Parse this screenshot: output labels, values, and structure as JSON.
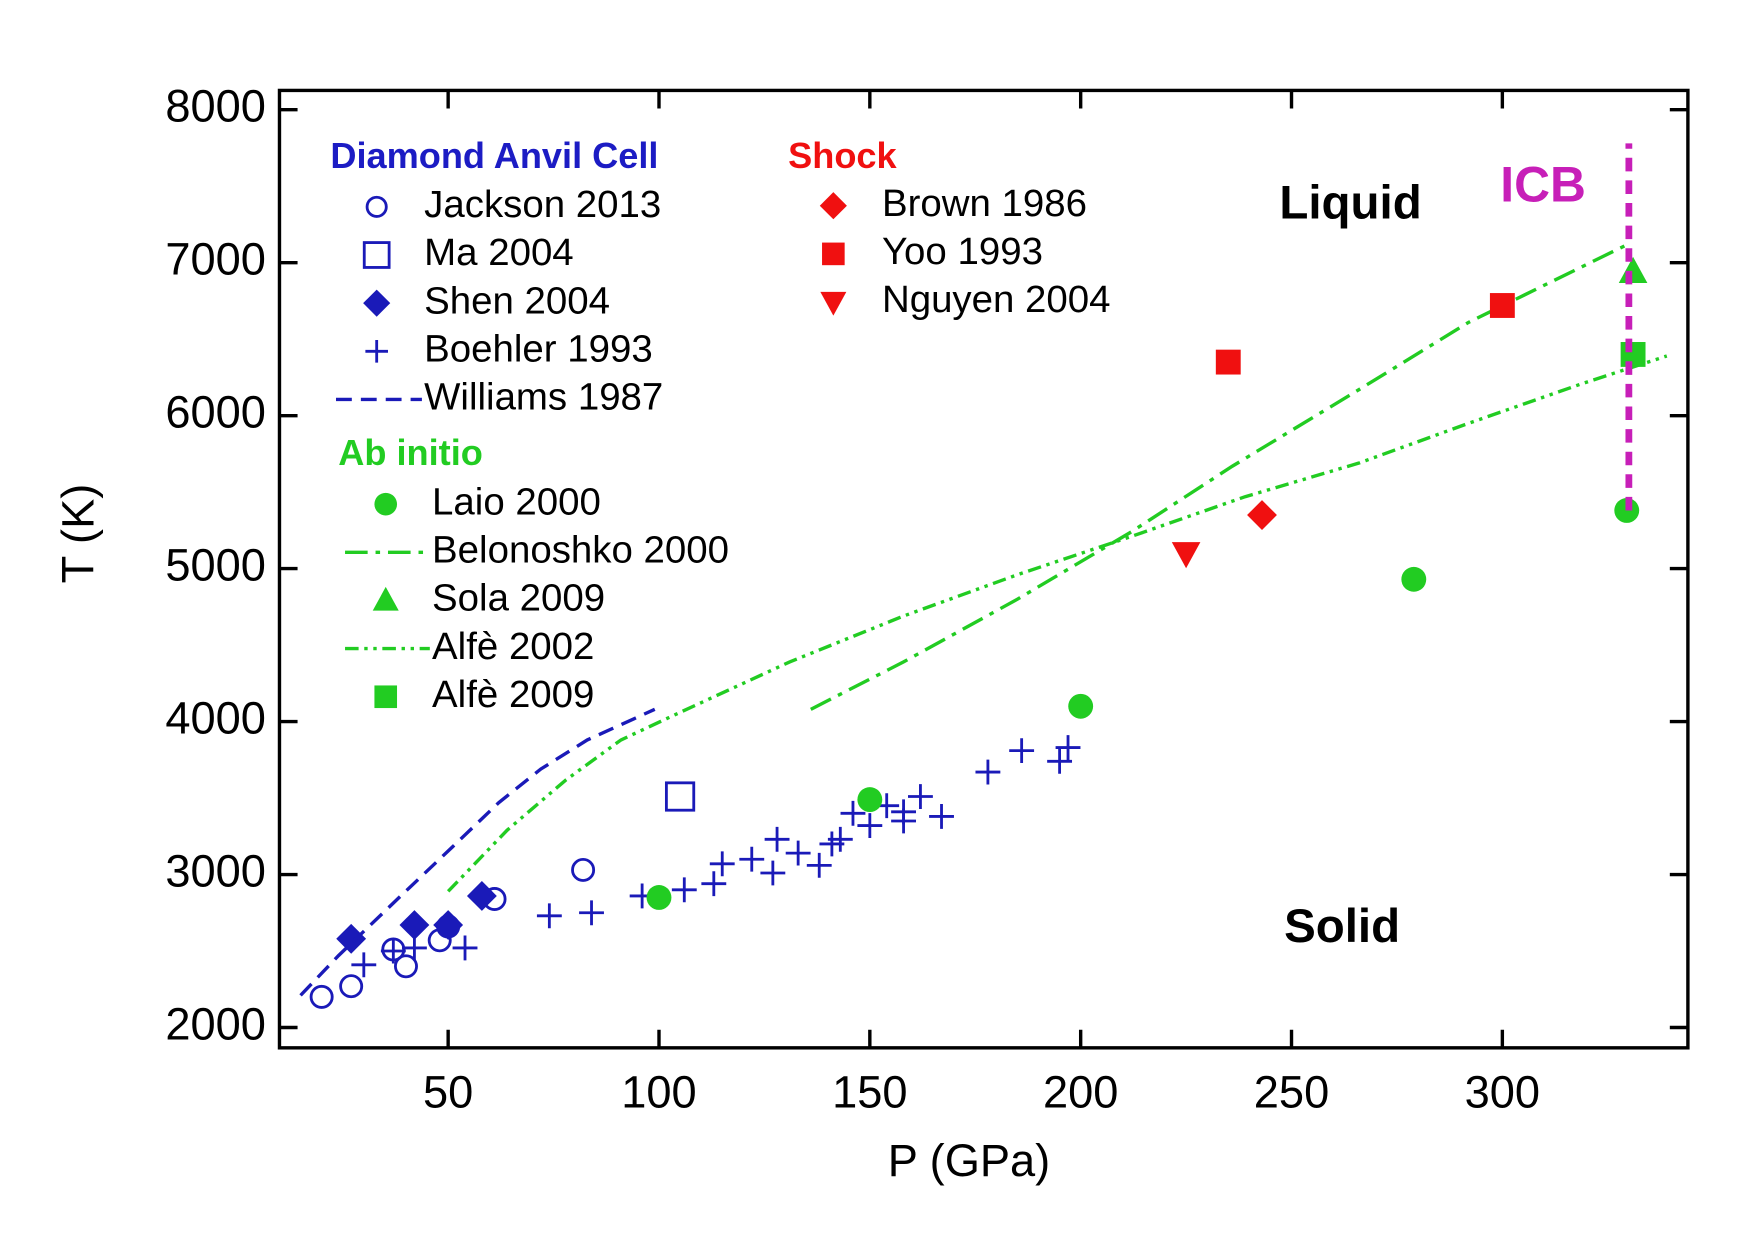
{
  "chart_data": {
    "type": "scatter",
    "x_label": "P (GPa)",
    "y_label": "T (K)",
    "xlim": [
      10,
      344
    ],
    "ylim": [
      1867,
      8126
    ],
    "xticks": [
      50,
      100,
      150,
      200,
      250,
      300
    ],
    "yticks": [
      2000,
      3000,
      4000,
      5000,
      6000,
      7000,
      8000
    ],
    "annotations": [
      {
        "text": "Liquid",
        "x": 264,
        "y": 7370
      },
      {
        "text": "Solid",
        "x": 262,
        "y": 2640
      }
    ],
    "icb": {
      "label": "ICB",
      "color": "#c71fb8",
      "x": 330,
      "y": [
        5380,
        7780
      ]
    },
    "groups": [
      {
        "name": "Diamond Anvil Cell",
        "color": "#1c1cc4",
        "series": [
          {
            "name": "Jackson 2013",
            "color": "#1a1ab8",
            "marker": "circle-open",
            "x": [
              20,
              27,
              37,
              40,
              48,
              50,
              61,
              82
            ],
            "values": [
              2200,
              2270,
              2510,
              2400,
              2570,
              2660,
              2840,
              3030
            ]
          },
          {
            "name": "Ma 2004",
            "color": "#1a1ab8",
            "marker": "square-open",
            "x": [
              105
            ],
            "values": [
              3510
            ]
          },
          {
            "name": "Shen 2004",
            "color": "#1a1ab8",
            "marker": "diamond",
            "x": [
              27,
              42,
              50,
              58
            ],
            "values": [
              2580,
              2670,
              2670,
              2860
            ]
          },
          {
            "name": "Boehler 1993",
            "color": "#1a1ab8",
            "marker": "plus",
            "x": [
              30,
              37,
              42,
              54,
              74,
              84,
              96,
              106,
              113,
              115,
              122,
              127,
              128,
              133,
              138,
              141,
              143,
              146,
              150,
              154,
              158,
              158,
              162,
              167,
              178,
              186,
              195,
              197
            ],
            "values": [
              2410,
              2500,
              2520,
              2520,
              2730,
              2750,
              2860,
              2900,
              2940,
              3070,
              3100,
              3010,
              3230,
              3140,
              3060,
              3200,
              3230,
              3400,
              3320,
              3450,
              3350,
              3410,
              3510,
              3380,
              3670,
              3810,
              3740,
              3830
            ]
          },
          {
            "name": "Williams 1987",
            "color": "#1a1ab8",
            "line": "dashed",
            "x": [
              15,
              24,
              38,
              51,
              62,
              72,
              83,
              99
            ],
            "values": [
              2210,
              2470,
              2840,
              3180,
              3470,
              3690,
              3880,
              4080
            ]
          }
        ]
      },
      {
        "name": "Ab initio",
        "color": "#22cc22",
        "series": [
          {
            "name": "Laio 2000",
            "color": "#22cc22",
            "marker": "circle",
            "x": [
              100,
              150,
              200,
              279,
              329.5
            ],
            "values": [
              2850,
              3490,
              4100,
              4930,
              5380
            ]
          },
          {
            "name": "Belonoshko 2000",
            "color": "#22cc22",
            "line": "dashdot",
            "x": [
              136,
              158,
              185,
              212,
              236,
              266,
              292,
              329
            ],
            "values": [
              4080,
              4390,
              4800,
              5240,
              5670,
              6170,
              6610,
              7110
            ]
          },
          {
            "name": "Sola 2009",
            "color": "#22cc22",
            "marker": "triangle-up",
            "x": [
              331
            ],
            "values": [
              6940
            ]
          },
          {
            "name": "Alfè 2002",
            "color": "#22cc22",
            "line": "dashdotdot",
            "x": [
              50,
              64,
              78,
              91,
              105,
              131,
              158,
              185,
              212,
              239,
              266,
              292,
              319,
              339
            ],
            "values": [
              2890,
              3290,
              3620,
              3880,
              4060,
              4390,
              4690,
              4960,
              5210,
              5470,
              5690,
              5950,
              6210,
              6390
            ]
          },
          {
            "name": "Alfè 2009",
            "color": "#22cc22",
            "marker": "square",
            "x": [
              331
            ],
            "values": [
              6400
            ]
          }
        ]
      },
      {
        "name": "Shock",
        "color": "#f01010",
        "series": [
          {
            "name": "Brown 1986",
            "color": "#f01010",
            "marker": "diamond",
            "x": [
              243
            ],
            "values": [
              5350
            ]
          },
          {
            "name": "Yoo 1993",
            "color": "#f01010",
            "marker": "square",
            "x": [
              235,
              300
            ],
            "values": [
              6350,
              6720
            ]
          },
          {
            "name": "Nguyen 2004",
            "color": "#f01010",
            "marker": "triangle-down",
            "x": [
              225
            ],
            "values": [
              5100
            ]
          }
        ]
      }
    ]
  }
}
